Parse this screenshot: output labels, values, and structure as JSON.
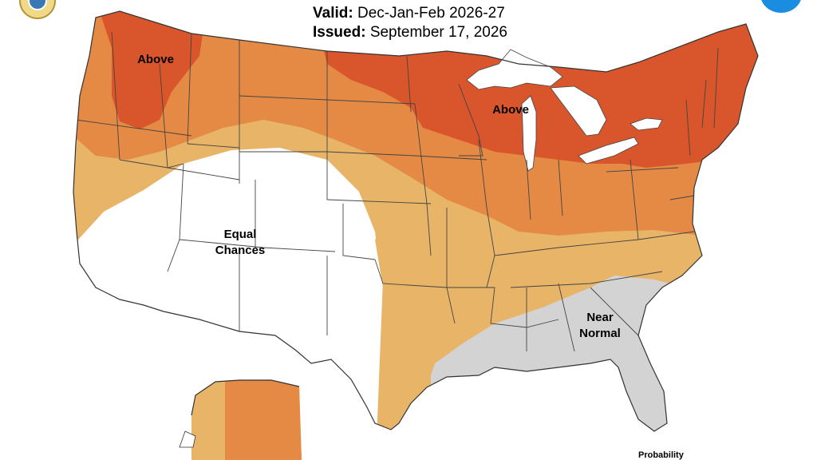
{
  "header": {
    "valid_label": "Valid:",
    "valid_value": "Dec-Jan-Feb 2026-27",
    "issued_label": "Issued:",
    "issued_value": "September 17, 2026"
  },
  "regions": {
    "above_west": "Above",
    "above_east": "Above",
    "equal_chances": [
      "Equal",
      "Chances"
    ],
    "near_normal": [
      "Near",
      "Normal"
    ]
  },
  "legend": {
    "title": "Probability"
  },
  "colors": {
    "above_high": "#d9552b",
    "above_mid": "#e48a45",
    "above_low": "#e8b468",
    "near_normal": "#d3d3d3",
    "equal_chances": "#ffffff",
    "water": "#ffffff",
    "border": "#444444"
  },
  "icons": [
    "noaa-seal-icon",
    "nws-logo-icon"
  ]
}
